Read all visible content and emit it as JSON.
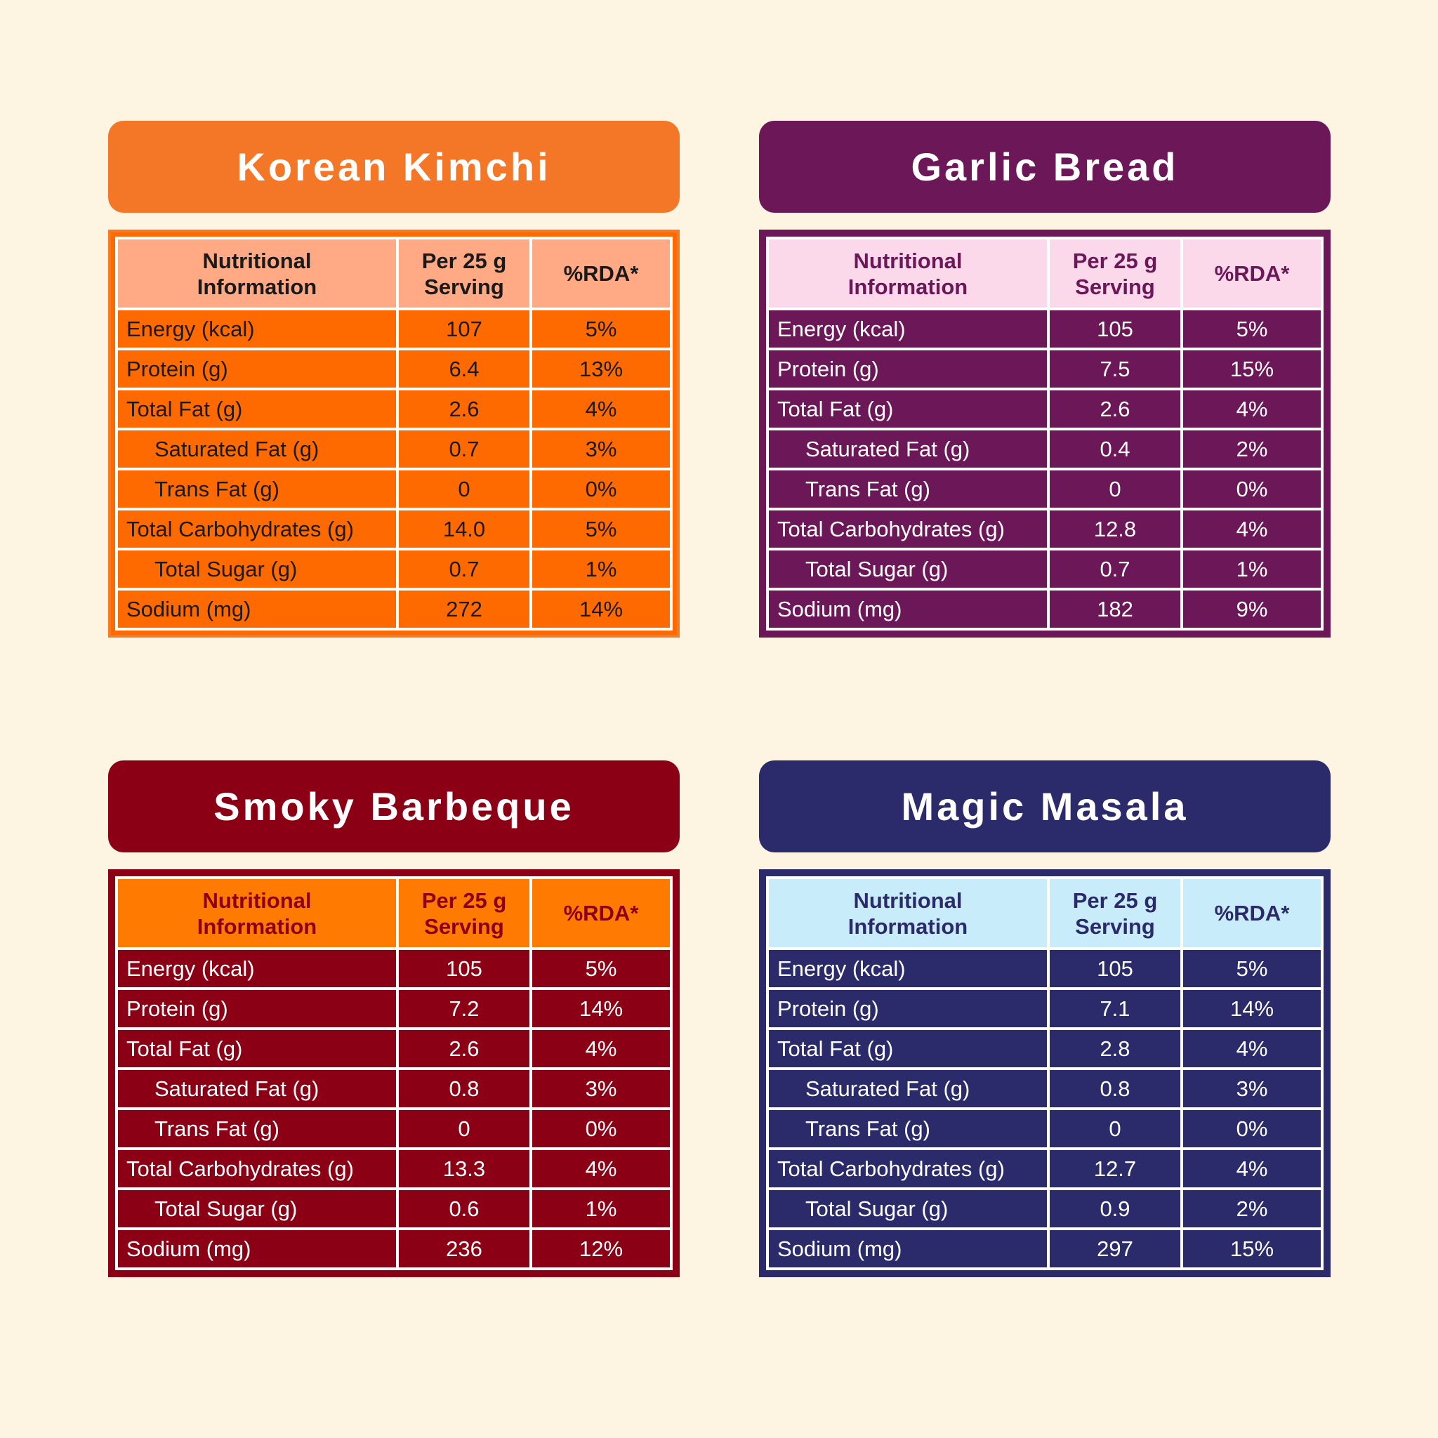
{
  "header_labels": {
    "nutrition": [
      "Nutritional",
      "Information"
    ],
    "serving": [
      "Per 25 g",
      "Serving"
    ],
    "rda": "%RDA*"
  },
  "products": [
    {
      "name": "Korean Kimchi",
      "colors": {
        "title_bg": "#f47727",
        "frame": "#f67a21",
        "header_bg": "#ffa985",
        "header_text": "#1a1a1a",
        "cell_bg": "#ff6a00",
        "cell_text": "#1a1a1a"
      },
      "rows": [
        {
          "label": "Energy (kcal)",
          "serving": "107",
          "rda": "5%",
          "indent": false
        },
        {
          "label": "Protein (g)",
          "serving": "6.4",
          "rda": "13%",
          "indent": false
        },
        {
          "label": "Total Fat (g)",
          "serving": "2.6",
          "rda": "4%",
          "indent": false
        },
        {
          "label": "Saturated Fat (g)",
          "serving": "0.7",
          "rda": "3%",
          "indent": true
        },
        {
          "label": "Trans Fat (g)",
          "serving": "0",
          "rda": "0%",
          "indent": true
        },
        {
          "label": "Total Carbohydrates (g)",
          "serving": "14.0",
          "rda": "5%",
          "indent": false
        },
        {
          "label": "Total Sugar (g)",
          "serving": "0.7",
          "rda": "1%",
          "indent": true
        },
        {
          "label": "Sodium (mg)",
          "serving": "272",
          "rda": "14%",
          "indent": false
        }
      ]
    },
    {
      "name": "Garlic Bread",
      "colors": {
        "title_bg": "#6c1758",
        "frame": "#6c1758",
        "header_bg": "#fbd9ea",
        "header_text": "#6c1758",
        "cell_bg": "#6c1758",
        "cell_text": "#ffffff"
      },
      "rows": [
        {
          "label": "Energy (kcal)",
          "serving": "105",
          "rda": "5%",
          "indent": false
        },
        {
          "label": "Protein (g)",
          "serving": "7.5",
          "rda": "15%",
          "indent": false
        },
        {
          "label": "Total Fat (g)",
          "serving": "2.6",
          "rda": "4%",
          "indent": false
        },
        {
          "label": "Saturated Fat (g)",
          "serving": "0.4",
          "rda": "2%",
          "indent": true
        },
        {
          "label": "Trans Fat (g)",
          "serving": "0",
          "rda": "0%",
          "indent": true
        },
        {
          "label": "Total Carbohydrates (g)",
          "serving": "12.8",
          "rda": "4%",
          "indent": false
        },
        {
          "label": "Total Sugar (g)",
          "serving": "0.7",
          "rda": "1%",
          "indent": true
        },
        {
          "label": "Sodium (mg)",
          "serving": "182",
          "rda": "9%",
          "indent": false
        }
      ]
    },
    {
      "name": "Smoky Barbeque",
      "colors": {
        "title_bg": "#8b0014",
        "frame": "#8b0014",
        "header_bg": "#ff7a00",
        "header_text": "#8b0014",
        "cell_bg": "#8b0014",
        "cell_text": "#ffffff"
      },
      "rows": [
        {
          "label": "Energy (kcal)",
          "serving": "105",
          "rda": "5%",
          "indent": false
        },
        {
          "label": "Protein (g)",
          "serving": "7.2",
          "rda": "14%",
          "indent": false
        },
        {
          "label": "Total Fat (g)",
          "serving": "2.6",
          "rda": "4%",
          "indent": false
        },
        {
          "label": "Saturated Fat (g)",
          "serving": "0.8",
          "rda": "3%",
          "indent": true
        },
        {
          "label": "Trans Fat (g)",
          "serving": "0",
          "rda": "0%",
          "indent": true
        },
        {
          "label": "Total Carbohydrates (g)",
          "serving": "13.3",
          "rda": "4%",
          "indent": false
        },
        {
          "label": "Total Sugar (g)",
          "serving": "0.6",
          "rda": "1%",
          "indent": true
        },
        {
          "label": "Sodium (mg)",
          "serving": "236",
          "rda": "12%",
          "indent": false
        }
      ]
    },
    {
      "name": "Magic Masala",
      "colors": {
        "title_bg": "#2b2a6b",
        "frame": "#2b2a6b",
        "header_bg": "#c9ecfa",
        "header_text": "#2b2a6b",
        "cell_bg": "#2b2a6b",
        "cell_text": "#ffffff"
      },
      "rows": [
        {
          "label": "Energy (kcal)",
          "serving": "105",
          "rda": "5%",
          "indent": false
        },
        {
          "label": "Protein (g)",
          "serving": "7.1",
          "rda": "14%",
          "indent": false
        },
        {
          "label": "Total Fat (g)",
          "serving": "2.8",
          "rda": "4%",
          "indent": false
        },
        {
          "label": "Saturated Fat (g)",
          "serving": "0.8",
          "rda": "3%",
          "indent": true
        },
        {
          "label": "Trans Fat (g)",
          "serving": "0",
          "rda": "0%",
          "indent": true
        },
        {
          "label": "Total Carbohydrates (g)",
          "serving": "12.7",
          "rda": "4%",
          "indent": false
        },
        {
          "label": "Total Sugar (g)",
          "serving": "0.9",
          "rda": "2%",
          "indent": true
        },
        {
          "label": "Sodium (mg)",
          "serving": "297",
          "rda": "15%",
          "indent": false
        }
      ]
    }
  ]
}
